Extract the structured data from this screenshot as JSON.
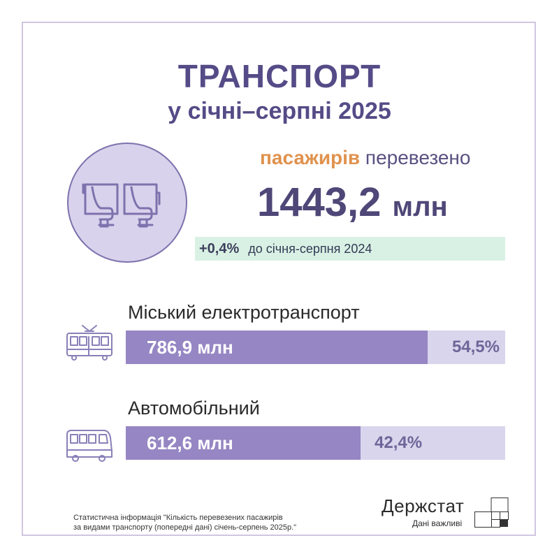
{
  "title": {
    "line1": "ТРАНСПОРТ",
    "line2": "у січні–серпні 2025"
  },
  "summary": {
    "highlight": "пасажирів",
    "rest": "перевезено",
    "total_value": "1443,2",
    "total_unit": "млн",
    "change_pct": "+0,4%",
    "change_text": "до січня-серпня 2024",
    "icon": "passenger-seats-icon"
  },
  "categories": [
    {
      "label": "Міський електротранспорт",
      "value": "786,9 млн",
      "share": "54,5%",
      "share_fraction": 0.795,
      "icon": "tram-icon"
    },
    {
      "label": "Автомобільний",
      "value": "612,6 млн",
      "share": "42,4%",
      "share_fraction": 0.619,
      "icon": "bus-icon"
    }
  ],
  "colors": {
    "title": "#544b87",
    "accent": "#e0924e",
    "bar_fill": "#9686c3",
    "bar_bg": "#d9d5ec",
    "change_bg": "#d9f1e4"
  },
  "footnote": {
    "line1": "Статистична інформація \"Кількість перевезених пасажирів",
    "line2": "за видами транспорту (попередні дані) січень-серпень 2025р.\""
  },
  "brand": {
    "name": "Держстат",
    "tagline": "Дані важливі"
  }
}
